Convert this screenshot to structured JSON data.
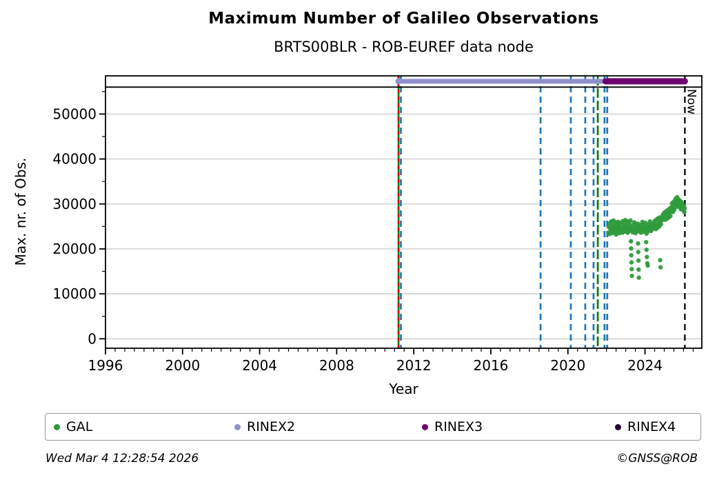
{
  "legend": {
    "items": [
      {
        "label": "GAL",
        "color": "#2e9b3c"
      },
      {
        "label": "RINEX2",
        "color": "#9190cd"
      },
      {
        "label": "RINEX3",
        "color": "#6e0072"
      },
      {
        "label": "RINEX4",
        "color": "#250030"
      }
    ]
  },
  "footer": {
    "timestamp": "Wed Mar  4 12:28:54 2026",
    "copyright": "©GNSS@ROB"
  },
  "chart_data": {
    "type": "scatter",
    "title": "Maximum Number of Galileo Observations",
    "subtitle": "BRTS00BLR - ROB-EUREF data node",
    "xlabel": "Year",
    "ylabel": "Max. nr. of Obs.",
    "xlim": [
      1996,
      2026.95
    ],
    "ylim": [
      -2100,
      58500
    ],
    "xticks_major": [
      1996,
      2000,
      2004,
      2008,
      2012,
      2016,
      2020,
      2024
    ],
    "xtick_minor_step": 0.5,
    "yticks_major": [
      0,
      10000,
      20000,
      30000,
      40000,
      50000
    ],
    "ytick_minor_step": 5000,
    "grid": "horizontal",
    "grid_color": "#cccccc",
    "max_line_value": 56000,
    "band_value": 57300,
    "now": {
      "x": 2026.07,
      "label": "Now",
      "color": "#000000"
    },
    "vlines": [
      {
        "x": 2011.21,
        "color": "#008000",
        "style": "solid"
      },
      {
        "x": 2011.21,
        "color": "#d40000",
        "style": "dashed-short"
      },
      {
        "x": 2011.33,
        "color": "#1f77b4",
        "style": "dashed"
      },
      {
        "x": 2018.58,
        "color": "#1f77b4",
        "style": "dashed"
      },
      {
        "x": 2020.15,
        "color": "#1f77b4",
        "style": "dashed"
      },
      {
        "x": 2020.9,
        "color": "#1f77b4",
        "style": "dashed"
      },
      {
        "x": 2021.33,
        "color": "#1f77b4",
        "style": "dashed"
      },
      {
        "x": 2021.55,
        "color": "#008000",
        "style": "dashed-long"
      },
      {
        "x": 2021.9,
        "color": "#1f77b4",
        "style": "dashed"
      },
      {
        "x": 2022.04,
        "color": "#1f77b4",
        "style": "dashed"
      }
    ],
    "bands": [
      {
        "name": "RINEX2",
        "color": "#9190cd",
        "start": 2011.21,
        "end": 2022.02,
        "thickness": 7,
        "start_dot": true
      },
      {
        "name": "RINEX3",
        "color": "#6e0072",
        "start": 2021.95,
        "end": 2026.07,
        "thickness": 9,
        "start_dot": false
      }
    ],
    "series": [
      {
        "name": "GAL",
        "color": "#2e9b3c",
        "marker_radius": 3.2,
        "points": [
          [
            2022.1,
            23600
          ],
          [
            2022.12,
            24900
          ],
          [
            2022.15,
            23300
          ],
          [
            2022.17,
            25700
          ],
          [
            2022.2,
            24500
          ],
          [
            2022.22,
            23900
          ],
          [
            2022.25,
            26100
          ],
          [
            2022.27,
            24700
          ],
          [
            2022.3,
            23500
          ],
          [
            2022.32,
            25300
          ],
          [
            2022.35,
            24200
          ],
          [
            2022.37,
            26300
          ],
          [
            2022.4,
            24900
          ],
          [
            2022.42,
            23700
          ],
          [
            2022.45,
            25500
          ],
          [
            2022.47,
            24400
          ],
          [
            2022.5,
            23200
          ],
          [
            2022.52,
            25900
          ],
          [
            2022.55,
            24600
          ],
          [
            2022.57,
            23800
          ],
          [
            2022.6,
            25200
          ],
          [
            2022.62,
            26000
          ],
          [
            2022.65,
            24300
          ],
          [
            2022.67,
            23500
          ],
          [
            2022.7,
            25600
          ],
          [
            2022.72,
            24800
          ],
          [
            2022.75,
            24000
          ],
          [
            2022.78,
            25800
          ],
          [
            2022.8,
            24400
          ],
          [
            2022.83,
            23600
          ],
          [
            2022.85,
            26200
          ],
          [
            2022.88,
            24900
          ],
          [
            2022.9,
            23900
          ],
          [
            2022.93,
            25400
          ],
          [
            2022.95,
            24600
          ],
          [
            2022.98,
            26400
          ],
          [
            2023.0,
            25000
          ],
          [
            2023.03,
            23800
          ],
          [
            2023.05,
            25700
          ],
          [
            2023.08,
            24500
          ],
          [
            2023.1,
            23600
          ],
          [
            2023.13,
            26100
          ],
          [
            2023.15,
            24800
          ],
          [
            2023.18,
            24000
          ],
          [
            2023.2,
            25500
          ],
          [
            2023.23,
            24300
          ],
          [
            2023.25,
            26300
          ],
          [
            2023.28,
            24700
          ],
          [
            2023.27,
            21700
          ],
          [
            2023.28,
            20100
          ],
          [
            2023.29,
            18600
          ],
          [
            2023.3,
            17000
          ],
          [
            2023.31,
            15500
          ],
          [
            2023.32,
            14000
          ],
          [
            2023.33,
            24600
          ],
          [
            2023.36,
            23700
          ],
          [
            2023.39,
            25300
          ],
          [
            2023.42,
            24100
          ],
          [
            2023.45,
            25900
          ],
          [
            2023.48,
            24400
          ],
          [
            2023.51,
            23500
          ],
          [
            2023.54,
            25100
          ],
          [
            2023.57,
            24700
          ],
          [
            2023.6,
            23900
          ],
          [
            2023.63,
            25600
          ],
          [
            2023.66,
            24200
          ],
          [
            2023.69,
            25000
          ],
          [
            2023.72,
            24500
          ],
          [
            2023.64,
            21200
          ],
          [
            2023.65,
            19300
          ],
          [
            2023.66,
            17400
          ],
          [
            2023.67,
            15400
          ],
          [
            2023.68,
            13600
          ],
          [
            2023.75,
            24800
          ],
          [
            2023.78,
            23600
          ],
          [
            2023.81,
            25400
          ],
          [
            2023.84,
            24200
          ],
          [
            2023.87,
            26000
          ],
          [
            2023.9,
            24600
          ],
          [
            2023.93,
            23800
          ],
          [
            2023.96,
            25200
          ],
          [
            2023.99,
            24400
          ],
          [
            2024.02,
            25800
          ],
          [
            2024.05,
            24100
          ],
          [
            2024.08,
            23400
          ],
          [
            2024.11,
            25000
          ],
          [
            2024.14,
            24700
          ],
          [
            2024.17,
            23900
          ],
          [
            2024.2,
            25500
          ],
          [
            2024.23,
            24300
          ],
          [
            2024.26,
            26100
          ],
          [
            2024.29,
            24900
          ],
          [
            2024.32,
            24000
          ],
          [
            2024.35,
            25300
          ],
          [
            2024.38,
            24600
          ],
          [
            2024.06,
            21500
          ],
          [
            2024.08,
            19800
          ],
          [
            2024.1,
            18200
          ],
          [
            2024.12,
            16800
          ],
          [
            2024.14,
            16300
          ],
          [
            2024.41,
            24500
          ],
          [
            2024.44,
            25600
          ],
          [
            2024.47,
            24800
          ],
          [
            2024.5,
            26200
          ],
          [
            2024.53,
            25100
          ],
          [
            2024.56,
            24400
          ],
          [
            2024.59,
            26500
          ],
          [
            2024.62,
            25400
          ],
          [
            2024.65,
            24700
          ],
          [
            2024.68,
            26800
          ],
          [
            2024.71,
            25800
          ],
          [
            2024.74,
            25000
          ],
          [
            2024.77,
            27000
          ],
          [
            2024.8,
            26100
          ],
          [
            2024.83,
            25500
          ],
          [
            2024.86,
            26700
          ],
          [
            2024.79,
            17500
          ],
          [
            2024.81,
            15900
          ],
          [
            2024.9,
            26400
          ],
          [
            2024.93,
            27600
          ],
          [
            2024.96,
            26800
          ],
          [
            2024.99,
            28000
          ],
          [
            2025.02,
            27100
          ],
          [
            2025.05,
            26500
          ],
          [
            2025.08,
            28300
          ],
          [
            2025.11,
            27400
          ],
          [
            2025.14,
            26700
          ],
          [
            2025.17,
            28600
          ],
          [
            2025.2,
            27800
          ],
          [
            2025.23,
            27000
          ],
          [
            2025.26,
            28900
          ],
          [
            2025.29,
            28100
          ],
          [
            2025.32,
            27300
          ],
          [
            2025.35,
            29200
          ],
          [
            2025.37,
            28400
          ],
          [
            2025.4,
            30100
          ],
          [
            2025.42,
            29000
          ],
          [
            2025.45,
            28200
          ],
          [
            2025.47,
            30400
          ],
          [
            2025.5,
            29500
          ],
          [
            2025.52,
            28700
          ],
          [
            2025.55,
            30800
          ],
          [
            2025.57,
            29800
          ],
          [
            2025.6,
            31200
          ],
          [
            2025.62,
            30300
          ],
          [
            2025.65,
            29400
          ],
          [
            2025.67,
            31500
          ],
          [
            2025.7,
            30600
          ],
          [
            2025.72,
            29700
          ],
          [
            2025.75,
            31000
          ],
          [
            2025.77,
            30200
          ],
          [
            2025.8,
            29300
          ],
          [
            2025.82,
            30700
          ],
          [
            2025.85,
            29900
          ],
          [
            2025.87,
            28800
          ],
          [
            2025.9,
            30400
          ],
          [
            2025.92,
            29600
          ],
          [
            2025.95,
            28900
          ],
          [
            2025.97,
            29800
          ],
          [
            2026.0,
            28600
          ],
          [
            2026.02,
            29400
          ],
          [
            2026.04,
            28200
          ],
          [
            2026.06,
            29000
          ]
        ]
      }
    ]
  }
}
